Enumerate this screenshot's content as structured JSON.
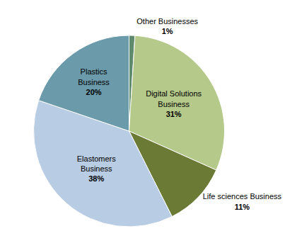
{
  "chart_data": {
    "type": "pie",
    "categories": [
      "Other Businesses",
      "Digital Solutions\nBusiness",
      "Life sciences Business",
      "Elastomers\nBusiness",
      "Plastics\nBusiness"
    ],
    "values": [
      1,
      31,
      11,
      38,
      20
    ],
    "value_labels": [
      "1%",
      "31%",
      "11%",
      "38%",
      "20%"
    ],
    "colors": [
      "#5f8a6e",
      "#b5c98a",
      "#6b7a35",
      "#b8cce4",
      "#6b9aaa"
    ]
  }
}
